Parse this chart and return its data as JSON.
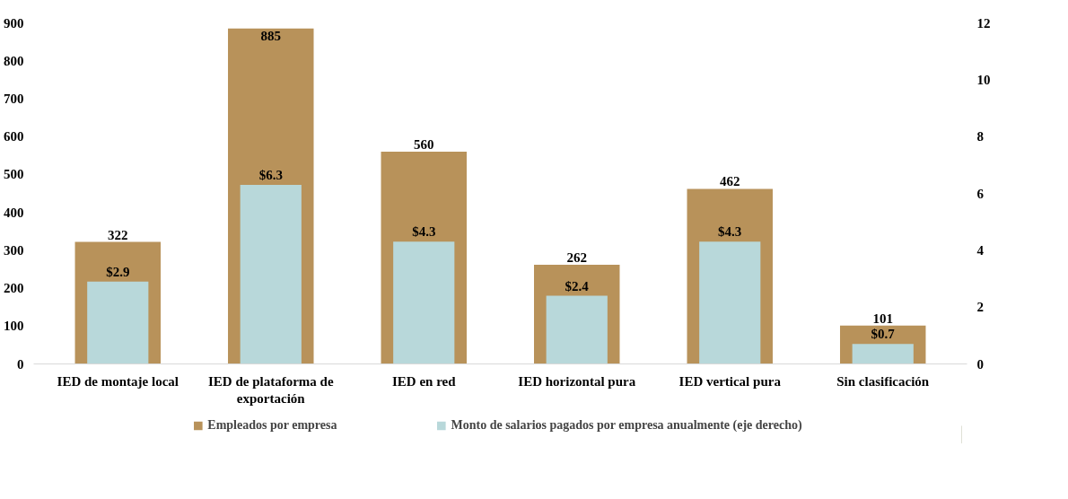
{
  "chart_data": {
    "type": "bar",
    "categories": [
      "IED de montaje local",
      "IED de plataforma de exportación",
      "IED en red",
      "IED horizontal pura",
      "IED vertical pura",
      "Sin clasificación"
    ],
    "series": [
      {
        "name": "Empleados por empresa",
        "color": "#b8925a",
        "values": [
          322,
          885,
          560,
          262,
          462,
          101
        ],
        "value_labels": [
          "322",
          "885",
          "560",
          "262",
          "462",
          "101"
        ]
      },
      {
        "name": "Monto de salarios pagados por empresa anualmente (eje derecho)",
        "color": "#b8d8da",
        "axis": "y2",
        "values": [
          2.9,
          6.3,
          4.3,
          2.4,
          4.3,
          0.7
        ],
        "value_labels": [
          "$2.9",
          "$6.3",
          "$4.3",
          "$2.4",
          "$4.3",
          "$0.7"
        ]
      }
    ],
    "ylim": [
      0,
      900
    ],
    "yticks": [
      0,
      100,
      200,
      300,
      400,
      500,
      600,
      700,
      800,
      900
    ],
    "y2lim": [
      0,
      12
    ],
    "y2ticks": [
      0,
      2,
      4,
      6,
      8,
      10,
      12
    ],
    "grid": false,
    "legend": "bottom"
  }
}
